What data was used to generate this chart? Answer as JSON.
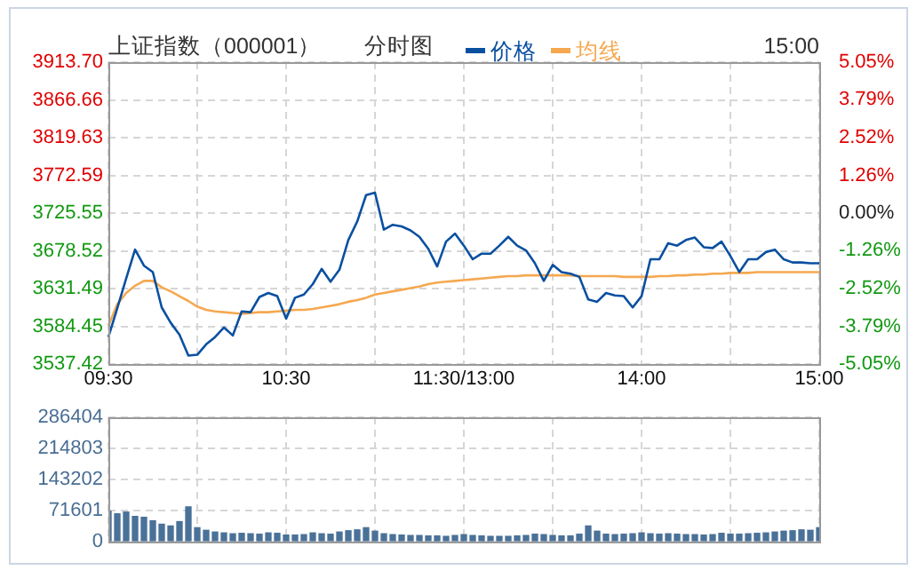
{
  "chart_data": [
    {
      "type": "line",
      "title": "上证指数（000001）",
      "subtitle": "分时图",
      "annotations": [
        "15:00"
      ],
      "legend": "top",
      "grid": true,
      "marker": "none",
      "line_style": "solid",
      "categories": [
        "09:30",
        null,
        null,
        null,
        null,
        null,
        null,
        null,
        null,
        null,
        null,
        null,
        null,
        null,
        null,
        null,
        null,
        null,
        null,
        null,
        "10:30",
        null,
        null,
        null,
        null,
        null,
        null,
        null,
        null,
        null,
        null,
        null,
        null,
        null,
        null,
        null,
        null,
        null,
        null,
        null,
        "11:30/13:00",
        null,
        null,
        null,
        null,
        null,
        null,
        null,
        null,
        null,
        null,
        null,
        null,
        null,
        null,
        null,
        null,
        null,
        null,
        null,
        "14:00",
        null,
        null,
        null,
        null,
        null,
        null,
        null,
        null,
        null,
        null,
        null,
        null,
        null,
        null,
        null,
        null,
        null,
        null,
        null,
        "15:00"
      ],
      "ylim": [
        3537.42,
        3913.7
      ],
      "yticks": [
        3537.42,
        3584.45,
        3631.49,
        3678.52,
        3725.55,
        3772.59,
        3819.63,
        3866.66,
        {
          "value": 3913.7,
          "label": "3913.70"
        }
      ],
      "y2lim": [
        -5.05,
        5.05
      ],
      "y2ticks": [
        {
          "value": -5.05,
          "label": "-5.05%"
        },
        {
          "value": -3.79,
          "label": "-3.79%"
        },
        {
          "value": -2.52,
          "label": "-2.52%"
        },
        {
          "value": -1.26,
          "label": "-1.26%"
        },
        {
          "value": 0,
          "label": "0.00%"
        },
        {
          "value": 1.26,
          "label": "1.26%"
        },
        {
          "value": 2.52,
          "label": "2.52%"
        },
        {
          "value": 3.79,
          "label": "3.79%"
        },
        {
          "value": 5.05,
          "label": "5.05%"
        }
      ],
      "series": [
        {
          "name": "价格",
          "color": "#0a50a0",
          "values": [
            3571,
            3607,
            3644,
            3680,
            3660,
            3652,
            3608,
            3589,
            3574,
            3548,
            3549,
            3562,
            3571,
            3583,
            3573,
            3603,
            3602,
            3621,
            3626,
            3622,
            3594,
            3620,
            3624,
            3637,
            3656,
            3640,
            3655,
            3692,
            3715,
            3748,
            3751,
            3705,
            3711,
            3709,
            3704,
            3696,
            3681,
            3659,
            3690,
            3700,
            3685,
            3668,
            3675,
            3675,
            3685,
            3696,
            3685,
            3679,
            3663,
            3641,
            3661,
            3652,
            3650,
            3646,
            3618,
            3615,
            3626,
            3623,
            3622,
            3608,
            3622,
            3668,
            3668,
            3688,
            3685,
            3692,
            3695,
            3683,
            3682,
            3690,
            3672,
            3652,
            3668,
            3668,
            3677,
            3680,
            3668,
            3664,
            3664,
            3663,
            3663
          ]
        },
        {
          "name": "均线",
          "color": "#f5a850",
          "values": [
            3585,
            3612,
            3626,
            3635,
            3641,
            3641,
            3633,
            3628,
            3622,
            3616,
            3609,
            3605,
            3603,
            3602,
            3601,
            3600,
            3601,
            3602,
            3602,
            3603,
            3604,
            3605,
            3605,
            3606,
            3608,
            3610,
            3612,
            3615,
            3617,
            3620,
            3624,
            3626,
            3628,
            3630,
            3632,
            3634,
            3637,
            3639,
            3640,
            3641,
            3642,
            3643,
            3644,
            3645,
            3646,
            3647,
            3647,
            3648,
            3648,
            3648,
            3648,
            3648,
            3648,
            3647,
            3647,
            3647,
            3647,
            3647,
            3646,
            3646,
            3646,
            3646,
            3647,
            3647,
            3648,
            3648,
            3649,
            3649,
            3650,
            3650,
            3651,
            3651,
            3651,
            3652,
            3652,
            3652,
            3652,
            3652,
            3652,
            3652,
            3652
          ]
        }
      ]
    },
    {
      "type": "bar",
      "color": "#4a7198",
      "grid": true,
      "tick_labels": "y",
      "categories": [
        null,
        null,
        null,
        null,
        null,
        null,
        null,
        null,
        null,
        null,
        null,
        null,
        null,
        null,
        null,
        null,
        null,
        null,
        null,
        null,
        null,
        null,
        null,
        null,
        null,
        null,
        null,
        null,
        null,
        null,
        null,
        null,
        null,
        null,
        null,
        null,
        null,
        null,
        null,
        null,
        null,
        null,
        null,
        null,
        null,
        null,
        null,
        null,
        null,
        null,
        null,
        null,
        null,
        null,
        null,
        null,
        null,
        null,
        null,
        null,
        null,
        null,
        null,
        null,
        null,
        null,
        null,
        null,
        null,
        null,
        null,
        null,
        null,
        null,
        null,
        null,
        null,
        null,
        null,
        null,
        null
      ],
      "ylim": [
        0,
        286404
      ],
      "yticks": [
        0,
        71601,
        143202,
        214803,
        286404
      ],
      "values": [
        70000,
        64000,
        68000,
        58000,
        56000,
        48000,
        40000,
        36000,
        46000,
        80000,
        32000,
        26000,
        22000,
        20000,
        18000,
        19000,
        18000,
        17000,
        20000,
        19000,
        15000,
        15000,
        16000,
        20000,
        18000,
        17000,
        22000,
        25000,
        27000,
        32000,
        24000,
        18000,
        16000,
        15000,
        14000,
        14000,
        13000,
        13000,
        12000,
        14000,
        16000,
        14000,
        13000,
        12000,
        12000,
        12000,
        13000,
        14000,
        17000,
        16000,
        14000,
        13000,
        13000,
        17000,
        36000,
        24000,
        17000,
        16000,
        17000,
        18000,
        20000,
        18000,
        17000,
        18000,
        17000,
        16000,
        16000,
        15000,
        16000,
        19000,
        17000,
        17000,
        18000,
        19000,
        20000,
        22000,
        24000,
        25000,
        27000,
        26000,
        32000
      ]
    }
  ]
}
